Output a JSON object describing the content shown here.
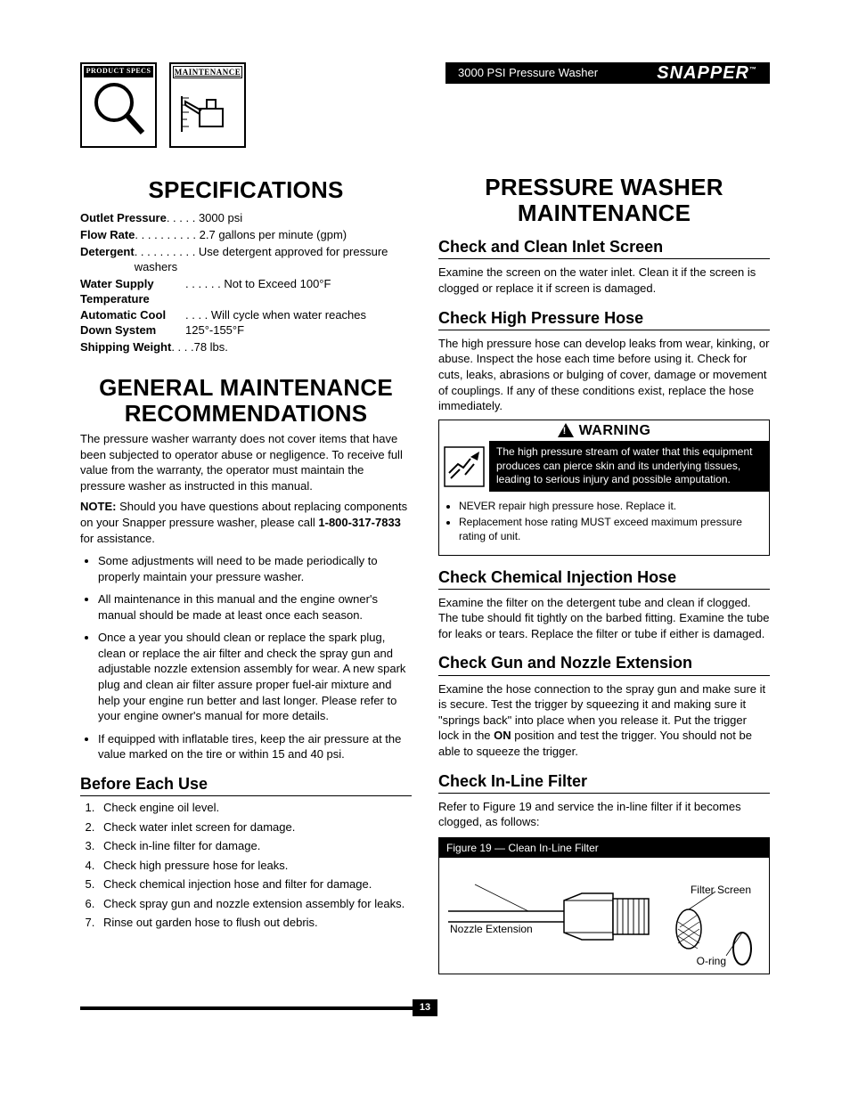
{
  "header": {
    "title": "3000 PSI Pressure Washer",
    "brand": "SNAPPER",
    "brand_tm": "™",
    "icon1_label": "PRODUCT SPECS",
    "icon2_label": "MAINTENANCE"
  },
  "left": {
    "h1": "SPECIFICATIONS",
    "specs": [
      {
        "label": "Outlet Pressure",
        "dots": " . . . . . ",
        "value": "3000 psi"
      },
      {
        "label": "Flow Rate",
        "dots": "  . . . . . . . . . . ",
        "value": "2.7 gallons per minute (gpm)"
      },
      {
        "label": "Detergent",
        "dots": " . . . . . . . . . . ",
        "value": "Use detergent approved for pressure washers"
      },
      {
        "label": "Water Supply Temperature",
        "dots": "  . . . . . . ",
        "value": "Not to Exceed 100°F"
      },
      {
        "label": "Automatic Cool Down System",
        "dots": "  . . . . ",
        "value": "Will cycle when water reaches 125°-155°F"
      },
      {
        "label": "Shipping Weight",
        "dots": "  . . . .",
        "value": "78 lbs."
      }
    ],
    "h1b_line1": "GENERAL MAINTENANCE",
    "h1b_line2": "RECOMMENDATIONS",
    "para1": "The pressure washer warranty does not cover items that have been subjected to operator abuse or negligence. To receive full value from the warranty, the operator must maintain the pressure washer as instructed in this manual.",
    "note_label": "NOTE:",
    "note_body": " Should you have questions about replacing components on your Snapper pressure washer, please call ",
    "note_phone": "1-800-317-7833",
    "note_tail": " for assistance.",
    "bullets": [
      "Some adjustments will need to be made periodically to properly maintain your pressure washer.",
      "All maintenance in this manual and the engine owner's manual should be made at least once each season.",
      "Once a year you should clean or replace the spark plug, clean or replace the air filter and check the spray gun and adjustable nozzle extension assembly for wear. A new spark plug and clean air filter assure proper fuel-air mixture and help your engine run better and last longer. Please refer to your engine owner's manual for more details.",
      "If equipped with inflatable tires, keep the air pressure at the value marked on the tire or within 15 and 40 psi."
    ],
    "h2_before": "Before Each Use",
    "before_list": [
      "Check engine oil level.",
      "Check water inlet screen for damage.",
      "Check in-line filter for damage.",
      "Check high pressure hose for leaks.",
      "Check chemical injection hose and filter for damage.",
      "Check spray gun and nozzle extension assembly for leaks.",
      "Rinse out garden hose to flush out debris."
    ]
  },
  "right": {
    "h1_line1": "PRESSURE WASHER",
    "h1_line2": "MAINTENANCE",
    "sec1_h": "Check and Clean Inlet Screen",
    "sec1_p": "Examine the screen on the water inlet. Clean it if the screen is clogged or replace it if screen is damaged.",
    "sec2_h": "Check High Pressure Hose",
    "sec2_p": "The high pressure hose can develop leaks from wear, kinking, or abuse. Inspect the hose each time before using it. Check for cuts, leaks, abrasions or bulging of cover, damage or movement of couplings. If any of these conditions exist, replace the hose immediately.",
    "warning_title": "WARNING",
    "warning_text": "The high pressure stream of water that this equipment produces can pierce skin and its underlying tissues, leading to serious injury and possible amputation.",
    "warning_bullets": [
      "NEVER repair high pressure hose. Replace it.",
      "Replacement hose rating MUST exceed maximum pressure rating of unit."
    ],
    "sec3_h": "Check Chemical Injection Hose",
    "sec3_p": "Examine the filter on the detergent tube and clean if clogged. The tube should fit tightly on the barbed fitting. Examine the tube for leaks or tears. Replace the filter or tube if either is damaged.",
    "sec4_h": "Check Gun and Nozzle Extension",
    "sec4_p1": "Examine the hose connection to the spray gun and make sure it is secure. Test the trigger by squeezing it and making sure it \"springs back\" into place when you release it. Put the trigger lock in the ",
    "sec4_on": "ON",
    "sec4_p2": " position and test the trigger. You should not be able to squeeze the trigger.",
    "sec5_h": "Check In-Line Filter",
    "sec5_p": "Refer to Figure 19 and service the in-line filter if it becomes clogged, as follows:",
    "fig_caption": "Figure 19 — Clean In-Line Filter",
    "fig_labels": {
      "nozzle": "Nozzle Extension",
      "filter": "Filter Screen",
      "oring": "O-ring"
    }
  },
  "page_number": "13",
  "colors": {
    "black": "#000000",
    "white": "#ffffff"
  }
}
